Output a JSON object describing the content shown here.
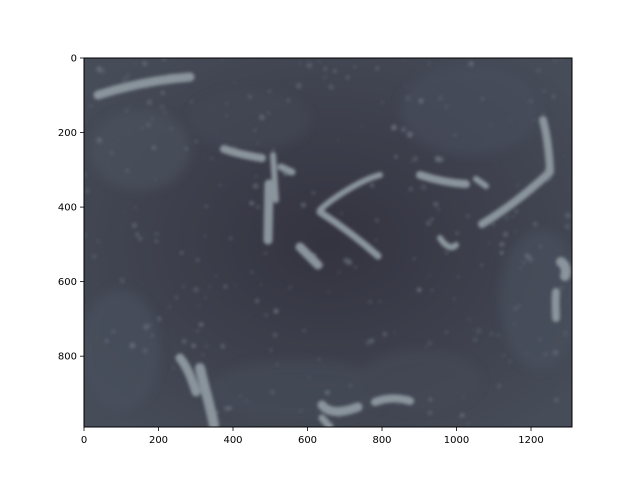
{
  "figure": {
    "xaxis": {
      "ticks": [
        0,
        200,
        400,
        600,
        800,
        1000,
        1200
      ],
      "range": [
        0,
        1310
      ]
    },
    "yaxis": {
      "ticks": [
        0,
        200,
        400,
        600,
        800
      ],
      "range": [
        990,
        0
      ],
      "inverted": true
    },
    "image": {
      "description_colors": {
        "background": "#3a3b47",
        "strand": "#8a949c",
        "speckle": "#5c6470"
      }
    }
  }
}
